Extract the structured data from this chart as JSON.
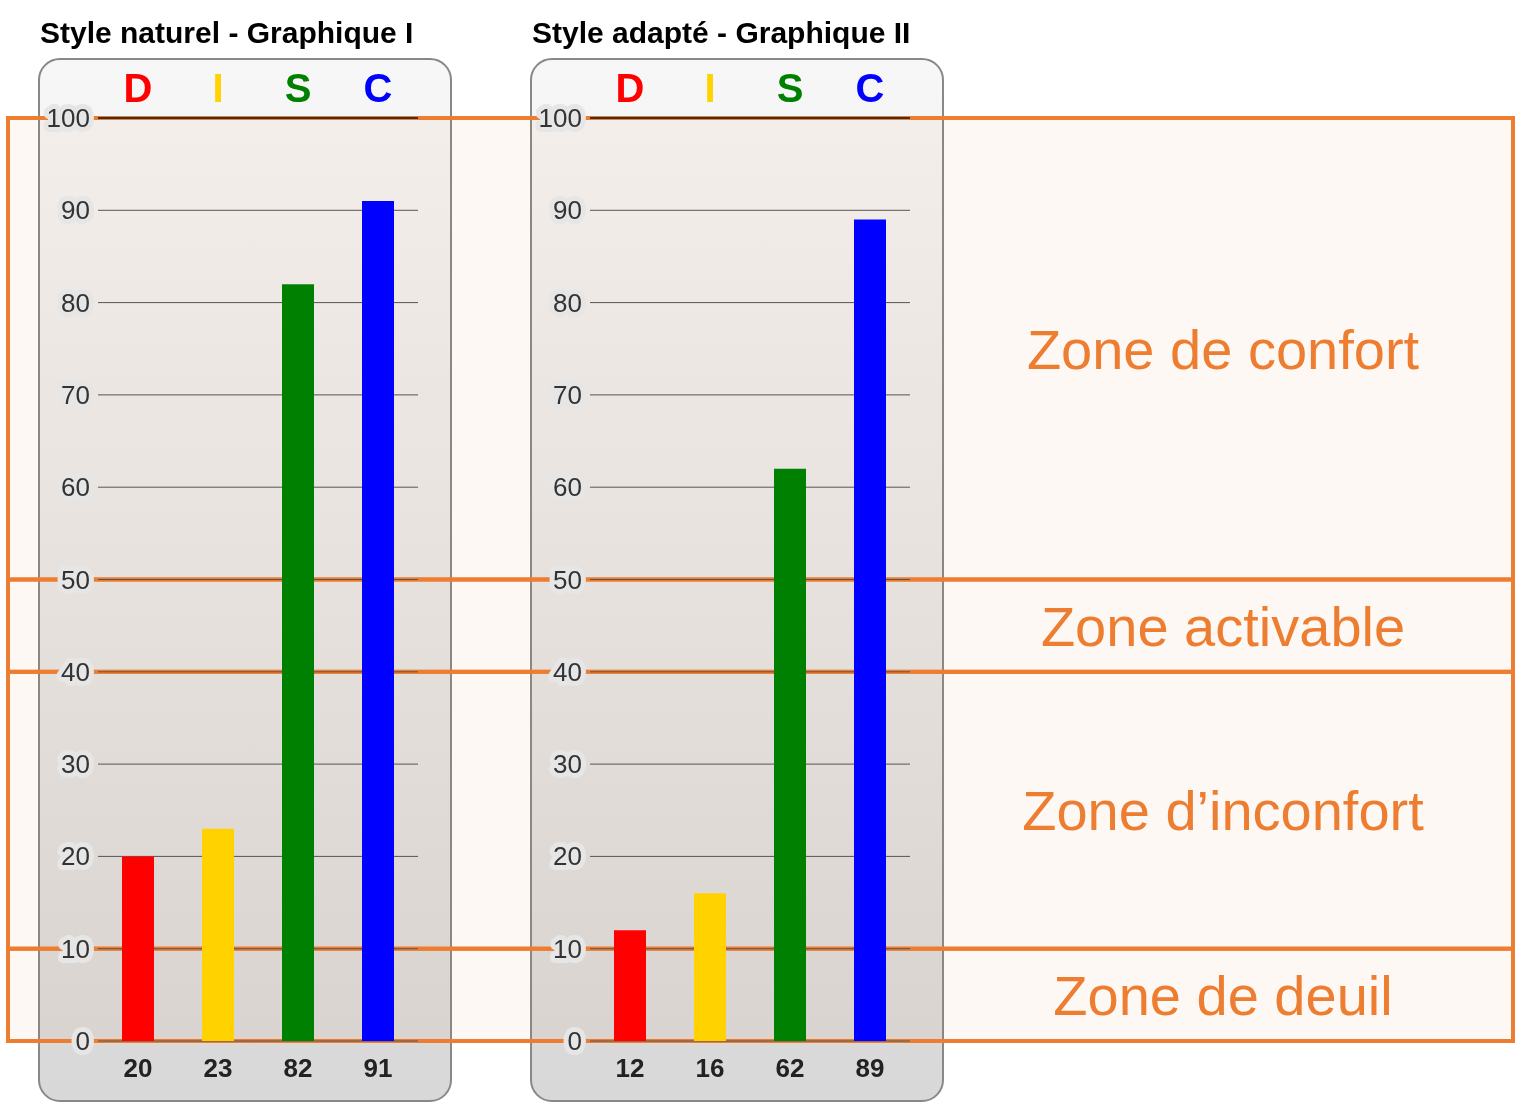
{
  "chart_data": [
    {
      "type": "bar",
      "title": "Style naturel - Graphique I",
      "categories": [
        "D",
        "I",
        "S",
        "C"
      ],
      "values": [
        20,
        23,
        82,
        91
      ],
      "colors": [
        "#ff0000",
        "#ffd200",
        "#008000",
        "#0000ff"
      ],
      "ylim": [
        0,
        100
      ],
      "yticks": [
        0,
        10,
        20,
        30,
        40,
        50,
        60,
        70,
        80,
        90,
        100
      ],
      "grid": "y",
      "data_labels": true
    },
    {
      "type": "bar",
      "title": "Style adapté - Graphique II",
      "categories": [
        "D",
        "I",
        "S",
        "C"
      ],
      "values": [
        12,
        16,
        62,
        89
      ],
      "colors": [
        "#ff0000",
        "#ffd200",
        "#008000",
        "#0000ff"
      ],
      "ylim": [
        0,
        100
      ],
      "yticks": [
        0,
        10,
        20,
        30,
        40,
        50,
        60,
        70,
        80,
        90,
        100
      ],
      "grid": "y",
      "data_labels": true,
      "bands": [
        {
          "axis": "y",
          "from": 50,
          "to": 100,
          "label": "Zone de confort",
          "color": "#ed7d31"
        },
        {
          "axis": "y",
          "from": 40,
          "to": 50,
          "label": "Zone activable",
          "color": "#ed7d31"
        },
        {
          "axis": "y",
          "from": 10,
          "to": 40,
          "label": "Zone d’inconfort",
          "color": "#ed7d31"
        },
        {
          "axis": "y",
          "from": 0,
          "to": 10,
          "label": "Zone de deuil",
          "color": "#ed7d31"
        }
      ]
    }
  ]
}
